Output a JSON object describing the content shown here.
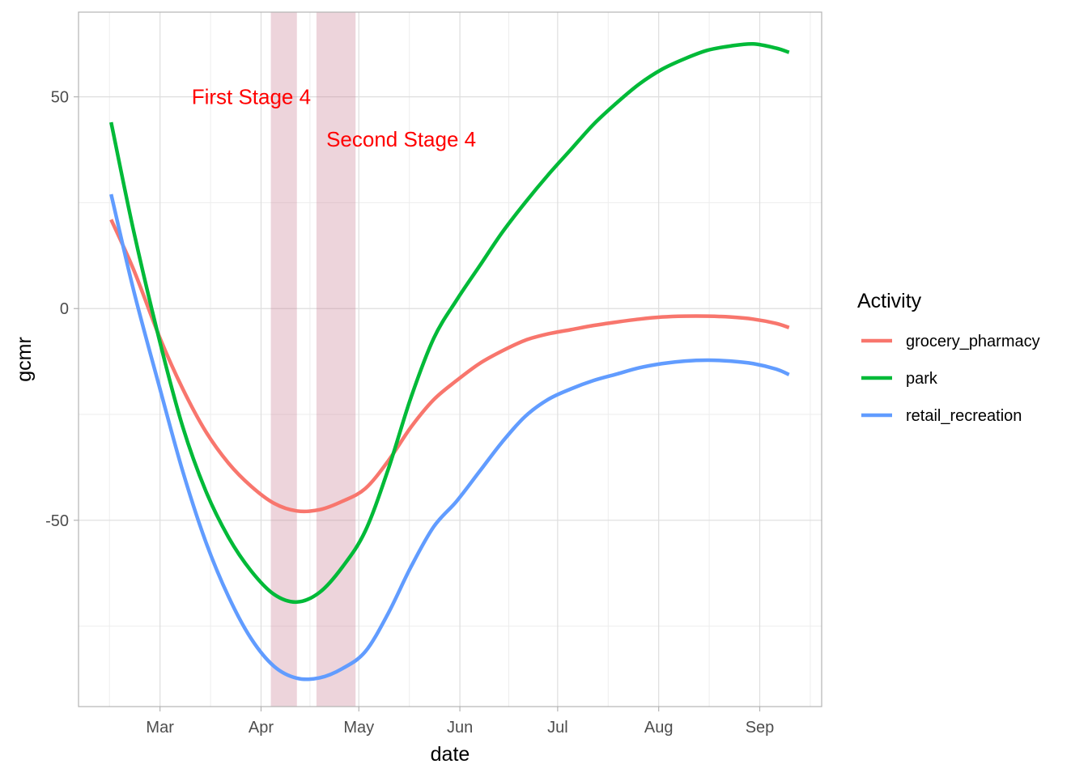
{
  "chart_data": {
    "type": "line",
    "xlabel": "date",
    "ylabel": "gcmr",
    "x_tick_labels": [
      "Mar",
      "Apr",
      "May",
      "Jun",
      "Jul",
      "Aug",
      "Sep"
    ],
    "x_ticks": [
      "2020-03-01",
      "2020-04-01",
      "2020-05-01",
      "2020-06-01",
      "2020-07-01",
      "2020-08-01",
      "2020-09-01"
    ],
    "y_ticks": [
      -50,
      0,
      50
    ],
    "y_tick_labels": [
      "-50",
      "0",
      "50"
    ],
    "xlim": [
      "2020-02-05",
      "2020-09-20"
    ],
    "ylim": [
      -94,
      70
    ],
    "grid": true,
    "legend": {
      "title": "Activity",
      "position": "right"
    },
    "shaded_periods": [
      {
        "start": "2020-04-04",
        "end": "2020-04-12"
      },
      {
        "start": "2020-04-18",
        "end": "2020-04-30"
      }
    ],
    "annotations": [
      {
        "text": "First Stage 4",
        "x": "2020-03-29",
        "y": 50,
        "color": "#FF0000"
      },
      {
        "text": "Second Stage 4",
        "x": "2020-05-14",
        "y": 40,
        "color": "#FF0000"
      }
    ],
    "series": [
      {
        "name": "grocery_pharmacy",
        "color": "#F8766D",
        "points": [
          [
            "2020-02-15",
            21
          ],
          [
            "2020-02-22",
            9
          ],
          [
            "2020-03-01",
            -7
          ],
          [
            "2020-03-08",
            -19
          ],
          [
            "2020-03-15",
            -29
          ],
          [
            "2020-03-22",
            -36.5
          ],
          [
            "2020-03-29",
            -42
          ],
          [
            "2020-04-05",
            -46
          ],
          [
            "2020-04-12",
            -47.8
          ],
          [
            "2020-04-19",
            -47.5
          ],
          [
            "2020-04-26",
            -45.5
          ],
          [
            "2020-05-03",
            -42.5
          ],
          [
            "2020-05-10",
            -36
          ],
          [
            "2020-05-17",
            -28
          ],
          [
            "2020-05-24",
            -21.5
          ],
          [
            "2020-05-31",
            -17
          ],
          [
            "2020-06-07",
            -13
          ],
          [
            "2020-06-14",
            -10
          ],
          [
            "2020-06-21",
            -7.5
          ],
          [
            "2020-06-28",
            -6
          ],
          [
            "2020-07-05",
            -5
          ],
          [
            "2020-07-12",
            -4
          ],
          [
            "2020-07-19",
            -3.2
          ],
          [
            "2020-07-26",
            -2.5
          ],
          [
            "2020-08-02",
            -2
          ],
          [
            "2020-08-09",
            -1.8
          ],
          [
            "2020-08-16",
            -1.8
          ],
          [
            "2020-08-23",
            -2
          ],
          [
            "2020-08-30",
            -2.5
          ],
          [
            "2020-09-06",
            -3.5
          ],
          [
            "2020-09-10",
            -4.5
          ]
        ]
      },
      {
        "name": "park",
        "color": "#00BA38",
        "points": [
          [
            "2020-02-15",
            44
          ],
          [
            "2020-02-22",
            18
          ],
          [
            "2020-03-01",
            -8
          ],
          [
            "2020-03-08",
            -28
          ],
          [
            "2020-03-15",
            -43
          ],
          [
            "2020-03-22",
            -54
          ],
          [
            "2020-03-29",
            -62
          ],
          [
            "2020-04-05",
            -67.5
          ],
          [
            "2020-04-12",
            -69.3
          ],
          [
            "2020-04-19",
            -67
          ],
          [
            "2020-04-26",
            -61
          ],
          [
            "2020-05-03",
            -52.5
          ],
          [
            "2020-05-10",
            -38
          ],
          [
            "2020-05-17",
            -21
          ],
          [
            "2020-05-24",
            -7
          ],
          [
            "2020-05-31",
            2
          ],
          [
            "2020-06-07",
            10
          ],
          [
            "2020-06-14",
            18
          ],
          [
            "2020-06-21",
            25
          ],
          [
            "2020-06-28",
            31.5
          ],
          [
            "2020-07-05",
            37.5
          ],
          [
            "2020-07-12",
            43.5
          ],
          [
            "2020-07-19",
            48.5
          ],
          [
            "2020-07-26",
            53
          ],
          [
            "2020-08-02",
            56.5
          ],
          [
            "2020-08-09",
            59
          ],
          [
            "2020-08-16",
            61
          ],
          [
            "2020-08-23",
            62
          ],
          [
            "2020-08-30",
            62.5
          ],
          [
            "2020-09-06",
            61.5
          ],
          [
            "2020-09-10",
            60.5
          ]
        ]
      },
      {
        "name": "retail_recreation",
        "color": "#619CFF",
        "points": [
          [
            "2020-02-15",
            27
          ],
          [
            "2020-02-22",
            4
          ],
          [
            "2020-03-01",
            -19
          ],
          [
            "2020-03-08",
            -38.5
          ],
          [
            "2020-03-15",
            -55
          ],
          [
            "2020-03-22",
            -68
          ],
          [
            "2020-03-29",
            -78
          ],
          [
            "2020-04-05",
            -84.5
          ],
          [
            "2020-04-12",
            -87.3
          ],
          [
            "2020-04-19",
            -87.2
          ],
          [
            "2020-04-26",
            -85
          ],
          [
            "2020-05-03",
            -81
          ],
          [
            "2020-05-10",
            -72
          ],
          [
            "2020-05-17",
            -61
          ],
          [
            "2020-05-24",
            -51.5
          ],
          [
            "2020-05-31",
            -45.5
          ],
          [
            "2020-06-07",
            -38.5
          ],
          [
            "2020-06-14",
            -31.5
          ],
          [
            "2020-06-21",
            -25.5
          ],
          [
            "2020-06-28",
            -21.5
          ],
          [
            "2020-07-05",
            -19
          ],
          [
            "2020-07-12",
            -17
          ],
          [
            "2020-07-19",
            -15.5
          ],
          [
            "2020-07-26",
            -14
          ],
          [
            "2020-08-02",
            -13
          ],
          [
            "2020-08-09",
            -12.4
          ],
          [
            "2020-08-16",
            -12.2
          ],
          [
            "2020-08-23",
            -12.4
          ],
          [
            "2020-08-30",
            -13
          ],
          [
            "2020-09-06",
            -14.3
          ],
          [
            "2020-09-10",
            -15.6
          ]
        ]
      }
    ]
  }
}
